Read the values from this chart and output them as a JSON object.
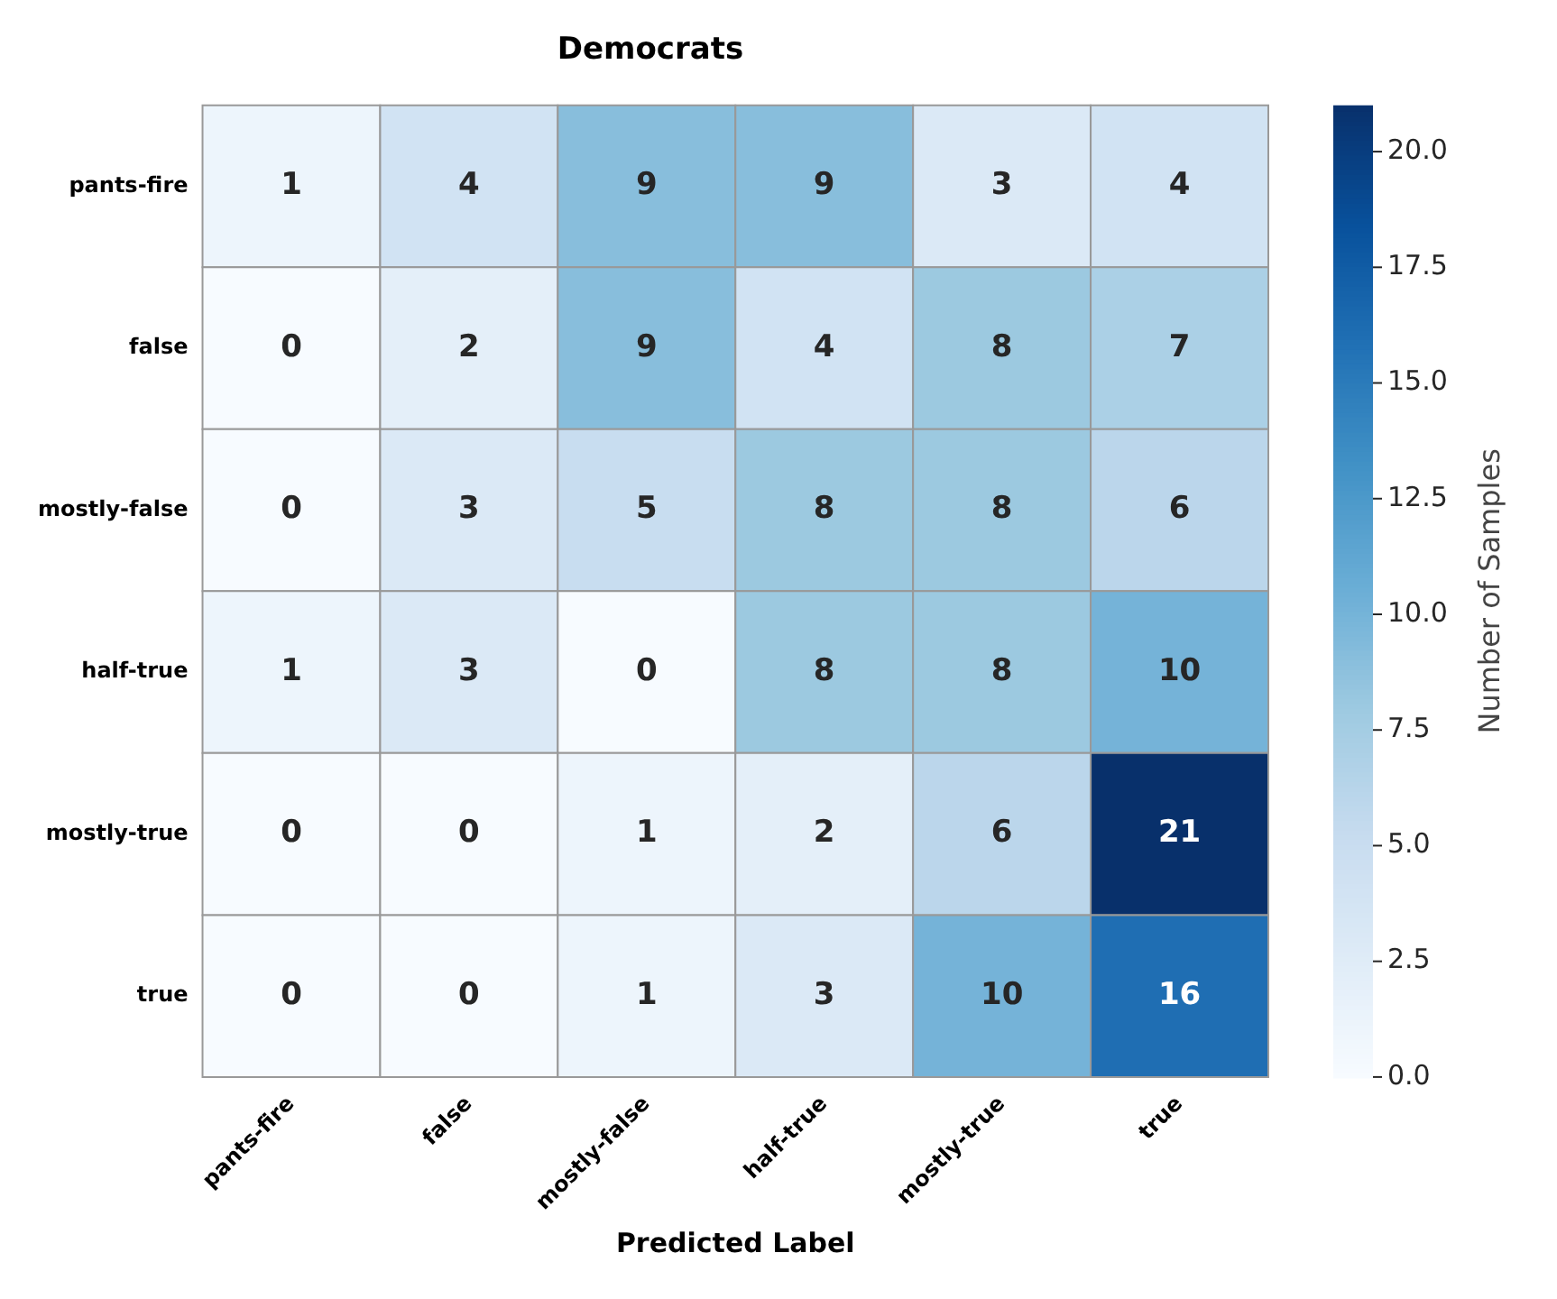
{
  "chart_data": {
    "type": "heatmap",
    "title": "Democrats",
    "xlabel": "Predicted Label",
    "clabel": "Number of Samples",
    "categories": [
      "pants-fire",
      "false",
      "mostly-false",
      "half-true",
      "mostly-true",
      "true"
    ],
    "y_categories": [
      "pants-fire",
      "false",
      "mostly-false",
      "half-true",
      "mostly-true",
      "true"
    ],
    "cells": [
      [
        1,
        4,
        9,
        9,
        3,
        4
      ],
      [
        0,
        2,
        9,
        4,
        8,
        7
      ],
      [
        0,
        3,
        5,
        8,
        8,
        6
      ],
      [
        1,
        3,
        0,
        8,
        8,
        10
      ],
      [
        0,
        0,
        1,
        2,
        6,
        21
      ],
      [
        0,
        0,
        1,
        3,
        10,
        16
      ]
    ],
    "data_labels": true,
    "clim": [
      0,
      21
    ],
    "cticks": [
      {
        "value": 0,
        "label": "0.0"
      },
      {
        "value": 2.5,
        "label": "2.5"
      },
      {
        "value": 5,
        "label": "5.0"
      },
      {
        "value": 7.5,
        "label": "7.5"
      },
      {
        "value": 10,
        "label": "10.0"
      },
      {
        "value": 12.5,
        "label": "12.5"
      },
      {
        "value": 15,
        "label": "15.0"
      },
      {
        "value": 17.5,
        "label": "17.5"
      },
      {
        "value": 20,
        "label": "20.0"
      }
    ]
  }
}
